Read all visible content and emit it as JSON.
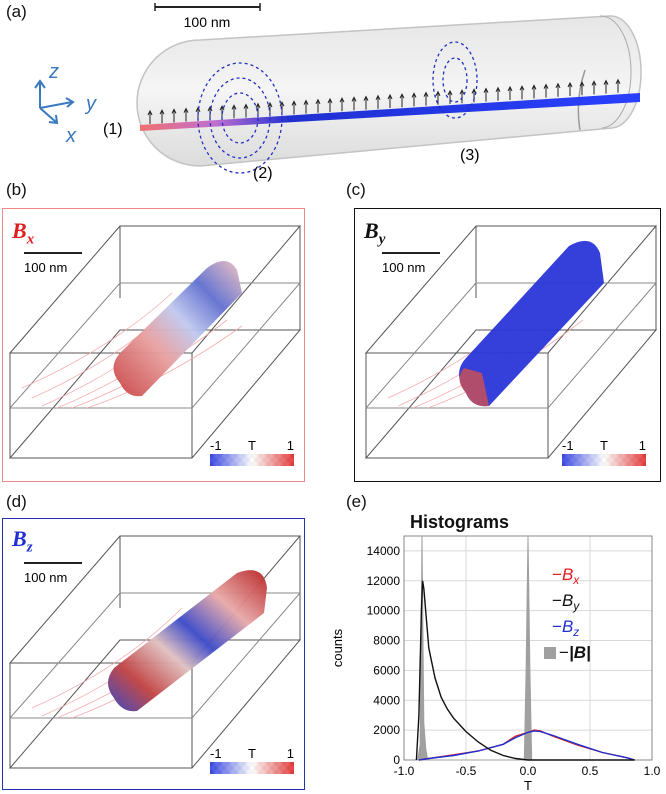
{
  "panel_a": {
    "label": "(a)",
    "scale_bar": "100 nm",
    "axes": {
      "z": "z",
      "y": "y",
      "x": "x"
    },
    "markers": [
      "(1)",
      "(2)",
      "(3)"
    ]
  },
  "panel_b": {
    "label": "(b)",
    "title": "B",
    "sub": "x",
    "scale_bar": "100 nm",
    "colorbar": {
      "min": "-1",
      "unit": "T",
      "max": "1"
    }
  },
  "panel_c": {
    "label": "(c)",
    "title": "B",
    "sub": "y",
    "scale_bar": "100 nm",
    "colorbar": {
      "min": "-1",
      "unit": "T",
      "max": "1"
    }
  },
  "panel_d": {
    "label": "(d)",
    "title": "B",
    "sub": "z",
    "scale_bar": "100 nm",
    "colorbar": {
      "min": "-1",
      "unit": "T",
      "max": "1"
    }
  },
  "panel_e": {
    "label": "(e)"
  },
  "colors": {
    "bx_frame": "#f08a8a",
    "by_frame": "#111111",
    "bz_frame": "#2330b0",
    "red": "#e02020",
    "blue": "#2030d0",
    "gray": "#a0a0a0"
  },
  "chart_data": {
    "type": "line",
    "title": "Histograms",
    "xlabel": "T",
    "ylabel": "counts",
    "xlim": [
      -1.0,
      1.0
    ],
    "ylim": [
      0,
      15000
    ],
    "xticks": [
      "-1.0",
      "-0.5",
      "0.0",
      "0.5",
      "1.0"
    ],
    "yticks": [
      "0",
      "2000",
      "4000",
      "6000",
      "8000",
      "10000",
      "12000",
      "14000"
    ],
    "legend": [
      "B_x",
      "B_y",
      "B_z",
      "-|B|"
    ],
    "series": [
      {
        "name": "B_x",
        "color": "#e02020",
        "x": [
          -0.88,
          -0.8,
          -0.6,
          -0.4,
          -0.2,
          -0.1,
          0.0,
          0.05,
          0.1,
          0.2,
          0.4,
          0.6,
          0.8,
          0.86
        ],
        "y": [
          0,
          100,
          350,
          600,
          1050,
          1600,
          1850,
          2000,
          1950,
          1600,
          1000,
          500,
          150,
          0
        ]
      },
      {
        "name": "B_y",
        "color": "#111111",
        "x": [
          -0.9,
          -0.88,
          -0.86,
          -0.85,
          -0.84,
          -0.82,
          -0.8,
          -0.75,
          -0.7,
          -0.65,
          -0.6,
          -0.5,
          -0.4,
          -0.3,
          -0.2,
          -0.1,
          0.0,
          0.1,
          0.2,
          0.3,
          0.4,
          0.5,
          0.6,
          0.7,
          0.8,
          0.86
        ],
        "y": [
          0,
          3000,
          10000,
          12000,
          11500,
          9500,
          7500,
          5500,
          4200,
          3400,
          2800,
          1900,
          1200,
          650,
          300,
          100,
          0,
          0,
          0,
          0,
          0,
          0,
          0,
          0,
          0,
          0
        ]
      },
      {
        "name": "B_z",
        "color": "#2030d0",
        "x": [
          -0.88,
          -0.8,
          -0.6,
          -0.4,
          -0.2,
          -0.1,
          0.0,
          0.05,
          0.1,
          0.2,
          0.4,
          0.6,
          0.8,
          0.86
        ],
        "y": [
          0,
          100,
          300,
          600,
          1050,
          1500,
          1850,
          1950,
          1900,
          1650,
          1050,
          500,
          150,
          0
        ]
      },
      {
        "name": "-|B|",
        "color": "#a0a0a0",
        "x": [
          -0.89,
          -0.87,
          -0.855,
          -0.84,
          -0.825,
          -0.81,
          -0.03,
          -0.015,
          0.0,
          0.015,
          0.03
        ],
        "y": [
          0,
          1000,
          15000,
          2500,
          800,
          0,
          0,
          6000,
          15000,
          6000,
          0
        ]
      }
    ]
  }
}
